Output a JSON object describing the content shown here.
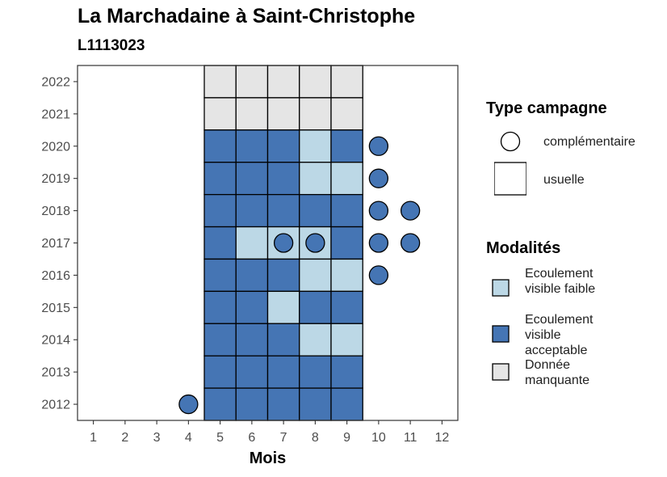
{
  "title": "La Marchadaine à Saint-Christophe",
  "subtitle": "L1113023",
  "colors": {
    "faible": "#BCD8E6",
    "acceptable": "#4575B4",
    "manquante": "#E5E5E5",
    "stroke": "#000000",
    "panel_border": "#333333"
  },
  "legend_type": {
    "title": "Type campagne",
    "items": [
      {
        "label": "complémentaire",
        "shape": "circle"
      },
      {
        "label": "usuelle",
        "shape": "square"
      }
    ]
  },
  "legend_modalites": {
    "title": "Modalités",
    "items": [
      {
        "label": "Ecoulement visible faible",
        "color": "#BCD8E6"
      },
      {
        "label": "Ecoulement visible acceptable",
        "color": "#4575B4"
      },
      {
        "label": "Donnée manquante",
        "color": "#E5E5E5"
      }
    ]
  },
  "chart_data": {
    "type": "heatmap",
    "title": "La Marchadaine à Saint-Christophe",
    "subtitle": "L1113023",
    "xlabel": "Mois",
    "ylabel": "",
    "x_ticks": [
      1,
      2,
      3,
      4,
      5,
      6,
      7,
      8,
      9,
      10,
      11,
      12
    ],
    "y_ticks": [
      2012,
      2013,
      2014,
      2015,
      2016,
      2017,
      2018,
      2019,
      2020,
      2021,
      2022
    ],
    "xlim": [
      0.5,
      12.5
    ],
    "ylim": [
      2011.5,
      2022.5
    ],
    "usuelle_cells": [
      {
        "year": 2022,
        "month": 5,
        "modalite": "Donnée manquante"
      },
      {
        "year": 2022,
        "month": 6,
        "modalite": "Donnée manquante"
      },
      {
        "year": 2022,
        "month": 7,
        "modalite": "Donnée manquante"
      },
      {
        "year": 2022,
        "month": 8,
        "modalite": "Donnée manquante"
      },
      {
        "year": 2022,
        "month": 9,
        "modalite": "Donnée manquante"
      },
      {
        "year": 2021,
        "month": 5,
        "modalite": "Donnée manquante"
      },
      {
        "year": 2021,
        "month": 6,
        "modalite": "Donnée manquante"
      },
      {
        "year": 2021,
        "month": 7,
        "modalite": "Donnée manquante"
      },
      {
        "year": 2021,
        "month": 8,
        "modalite": "Donnée manquante"
      },
      {
        "year": 2021,
        "month": 9,
        "modalite": "Donnée manquante"
      },
      {
        "year": 2020,
        "month": 5,
        "modalite": "Ecoulement visible acceptable"
      },
      {
        "year": 2020,
        "month": 6,
        "modalite": "Ecoulement visible acceptable"
      },
      {
        "year": 2020,
        "month": 7,
        "modalite": "Ecoulement visible acceptable"
      },
      {
        "year": 2020,
        "month": 8,
        "modalite": "Ecoulement visible faible"
      },
      {
        "year": 2020,
        "month": 9,
        "modalite": "Ecoulement visible acceptable"
      },
      {
        "year": 2019,
        "month": 5,
        "modalite": "Ecoulement visible acceptable"
      },
      {
        "year": 2019,
        "month": 6,
        "modalite": "Ecoulement visible acceptable"
      },
      {
        "year": 2019,
        "month": 7,
        "modalite": "Ecoulement visible acceptable"
      },
      {
        "year": 2019,
        "month": 8,
        "modalite": "Ecoulement visible faible"
      },
      {
        "year": 2019,
        "month": 9,
        "modalite": "Ecoulement visible faible"
      },
      {
        "year": 2018,
        "month": 5,
        "modalite": "Ecoulement visible acceptable"
      },
      {
        "year": 2018,
        "month": 6,
        "modalite": "Ecoulement visible acceptable"
      },
      {
        "year": 2018,
        "month": 7,
        "modalite": "Ecoulement visible acceptable"
      },
      {
        "year": 2018,
        "month": 8,
        "modalite": "Ecoulement visible acceptable"
      },
      {
        "year": 2018,
        "month": 9,
        "modalite": "Ecoulement visible acceptable"
      },
      {
        "year": 2017,
        "month": 5,
        "modalite": "Ecoulement visible acceptable"
      },
      {
        "year": 2017,
        "month": 6,
        "modalite": "Ecoulement visible faible"
      },
      {
        "year": 2017,
        "month": 7,
        "modalite": "Ecoulement visible faible"
      },
      {
        "year": 2017,
        "month": 8,
        "modalite": "Ecoulement visible faible"
      },
      {
        "year": 2017,
        "month": 9,
        "modalite": "Ecoulement visible acceptable"
      },
      {
        "year": 2016,
        "month": 5,
        "modalite": "Ecoulement visible acceptable"
      },
      {
        "year": 2016,
        "month": 6,
        "modalite": "Ecoulement visible acceptable"
      },
      {
        "year": 2016,
        "month": 7,
        "modalite": "Ecoulement visible acceptable"
      },
      {
        "year": 2016,
        "month": 8,
        "modalite": "Ecoulement visible faible"
      },
      {
        "year": 2016,
        "month": 9,
        "modalite": "Ecoulement visible faible"
      },
      {
        "year": 2015,
        "month": 5,
        "modalite": "Ecoulement visible acceptable"
      },
      {
        "year": 2015,
        "month": 6,
        "modalite": "Ecoulement visible acceptable"
      },
      {
        "year": 2015,
        "month": 7,
        "modalite": "Ecoulement visible faible"
      },
      {
        "year": 2015,
        "month": 8,
        "modalite": "Ecoulement visible acceptable"
      },
      {
        "year": 2015,
        "month": 9,
        "modalite": "Ecoulement visible acceptable"
      },
      {
        "year": 2014,
        "month": 5,
        "modalite": "Ecoulement visible acceptable"
      },
      {
        "year": 2014,
        "month": 6,
        "modalite": "Ecoulement visible acceptable"
      },
      {
        "year": 2014,
        "month": 7,
        "modalite": "Ecoulement visible acceptable"
      },
      {
        "year": 2014,
        "month": 8,
        "modalite": "Ecoulement visible faible"
      },
      {
        "year": 2014,
        "month": 9,
        "modalite": "Ecoulement visible faible"
      },
      {
        "year": 2013,
        "month": 5,
        "modalite": "Ecoulement visible acceptable"
      },
      {
        "year": 2013,
        "month": 6,
        "modalite": "Ecoulement visible acceptable"
      },
      {
        "year": 2013,
        "month": 7,
        "modalite": "Ecoulement visible acceptable"
      },
      {
        "year": 2013,
        "month": 8,
        "modalite": "Ecoulement visible acceptable"
      },
      {
        "year": 2013,
        "month": 9,
        "modalite": "Ecoulement visible acceptable"
      },
      {
        "year": 2012,
        "month": 5,
        "modalite": "Ecoulement visible acceptable"
      },
      {
        "year": 2012,
        "month": 6,
        "modalite": "Ecoulement visible acceptable"
      },
      {
        "year": 2012,
        "month": 7,
        "modalite": "Ecoulement visible acceptable"
      },
      {
        "year": 2012,
        "month": 8,
        "modalite": "Ecoulement visible acceptable"
      },
      {
        "year": 2012,
        "month": 9,
        "modalite": "Ecoulement visible acceptable"
      }
    ],
    "complementaire_points": [
      {
        "year": 2020,
        "month": 10,
        "modalite": "Ecoulement visible acceptable"
      },
      {
        "year": 2019,
        "month": 10,
        "modalite": "Ecoulement visible acceptable"
      },
      {
        "year": 2018,
        "month": 10,
        "modalite": "Ecoulement visible acceptable"
      },
      {
        "year": 2018,
        "month": 11,
        "modalite": "Ecoulement visible acceptable"
      },
      {
        "year": 2017,
        "month": 7,
        "modalite": "Ecoulement visible acceptable"
      },
      {
        "year": 2017,
        "month": 8,
        "modalite": "Ecoulement visible acceptable"
      },
      {
        "year": 2017,
        "month": 10,
        "modalite": "Ecoulement visible acceptable"
      },
      {
        "year": 2017,
        "month": 11,
        "modalite": "Ecoulement visible acceptable"
      },
      {
        "year": 2016,
        "month": 10,
        "modalite": "Ecoulement visible acceptable"
      },
      {
        "year": 2012,
        "month": 4,
        "modalite": "Ecoulement visible acceptable"
      }
    ]
  }
}
